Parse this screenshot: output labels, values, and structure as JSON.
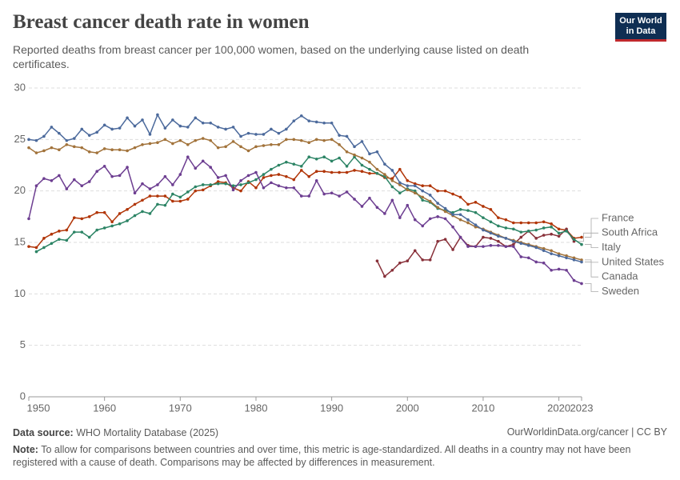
{
  "chart_data": {
    "type": "line",
    "title": "Breast cancer death rate in women",
    "subtitle": "Reported deaths from breast cancer per 100,000 women, based on the underlying cause listed on death certificates.",
    "logo": [
      "Our World",
      "in Data"
    ],
    "source_label": "Data source:",
    "source": "WHO Mortality Database (2025)",
    "credit": "OurWorldinData.org/cancer | CC BY",
    "note_label": "Note:",
    "note": "To allow for comparisons between countries and over time, this metric is age-standardized. All deaths in a country may not have been registered with a cause of death. Comparisons may be affected by differences in measurement.",
    "grid": true,
    "xlim": [
      1950,
      2023
    ],
    "xticks": [
      1950,
      1960,
      1970,
      1980,
      1990,
      2000,
      2010,
      2020,
      2023
    ],
    "ylim": [
      0,
      30
    ],
    "yticks": [
      0,
      5,
      10,
      15,
      20,
      25,
      30
    ],
    "x": [
      1950,
      1951,
      1952,
      1953,
      1954,
      1955,
      1956,
      1957,
      1958,
      1959,
      1960,
      1961,
      1962,
      1963,
      1964,
      1965,
      1966,
      1967,
      1968,
      1969,
      1970,
      1971,
      1972,
      1973,
      1974,
      1975,
      1976,
      1977,
      1978,
      1979,
      1980,
      1981,
      1982,
      1983,
      1984,
      1985,
      1986,
      1987,
      1988,
      1989,
      1990,
      1991,
      1992,
      1993,
      1994,
      1995,
      1996,
      1997,
      1998,
      1999,
      2000,
      2001,
      2002,
      2003,
      2004,
      2005,
      2006,
      2007,
      2008,
      2009,
      2010,
      2011,
      2012,
      2013,
      2014,
      2015,
      2016,
      2017,
      2018,
      2019,
      2020,
      2021,
      2022,
      2023
    ],
    "series": [
      {
        "name": "France",
        "color": "#B13507",
        "values": [
          14.6,
          14.5,
          15.4,
          15.8,
          16.1,
          16.2,
          17.4,
          17.3,
          17.5,
          17.9,
          17.9,
          17.0,
          17.8,
          18.2,
          18.7,
          19.1,
          19.5,
          19.5,
          19.5,
          19.0,
          19.0,
          19.2,
          20.0,
          20.1,
          20.5,
          20.9,
          20.8,
          20.3,
          20.0,
          20.9,
          20.3,
          21.3,
          21.5,
          21.6,
          21.4,
          21.1,
          22.0,
          21.4,
          21.9,
          21.9,
          21.8,
          21.8,
          21.8,
          22.0,
          21.9,
          21.7,
          21.7,
          21.3,
          21.2,
          22.1,
          21.0,
          20.7,
          20.5,
          20.5,
          20.0,
          20.0,
          19.7,
          19.4,
          18.7,
          18.9,
          18.5,
          18.2,
          17.4,
          17.2,
          16.9,
          16.9,
          16.9,
          16.9,
          17.0,
          16.8,
          16.3,
          16.2,
          15.4,
          15.5
        ]
      },
      {
        "name": "South Africa",
        "color": "#883039",
        "values": [
          null,
          null,
          null,
          null,
          null,
          null,
          null,
          null,
          null,
          null,
          null,
          null,
          null,
          null,
          null,
          null,
          null,
          null,
          null,
          null,
          null,
          null,
          null,
          null,
          null,
          null,
          null,
          null,
          null,
          null,
          null,
          null,
          null,
          null,
          null,
          null,
          null,
          null,
          null,
          null,
          null,
          null,
          null,
          null,
          null,
          null,
          13.2,
          11.7,
          12.3,
          13.0,
          13.2,
          14.2,
          13.3,
          13.3,
          15.1,
          15.3,
          14.3,
          15.5,
          14.7,
          14.6,
          15.5,
          15.4,
          15.1,
          14.6,
          14.8,
          15.5,
          16.1,
          15.4,
          15.7,
          15.8,
          15.6,
          16.3,
          15.1,
          null
        ]
      },
      {
        "name": "Italy",
        "color": "#2C8465",
        "values": [
          null,
          14.1,
          14.5,
          14.9,
          15.3,
          15.2,
          16.0,
          16.0,
          15.5,
          16.2,
          16.4,
          16.6,
          16.8,
          17.1,
          17.6,
          18.0,
          17.8,
          18.7,
          18.6,
          19.7,
          19.4,
          19.9,
          20.4,
          20.6,
          20.6,
          20.7,
          20.7,
          20.5,
          20.6,
          20.8,
          21.1,
          21.6,
          22.1,
          22.5,
          22.8,
          22.6,
          22.4,
          23.3,
          23.1,
          23.3,
          22.9,
          23.2,
          22.4,
          23.3,
          22.5,
          22.1,
          21.7,
          21.4,
          20.4,
          19.8,
          20.2,
          20.0,
          19.1,
          18.9,
          18.3,
          18.1,
          17.9,
          18.2,
          18.1,
          17.9,
          17.4,
          17.0,
          16.6,
          16.4,
          16.3,
          16.0,
          16.1,
          16.2,
          16.4,
          16.5,
          15.9,
          16.1,
          15.3,
          14.8
        ]
      },
      {
        "name": "United States",
        "color": "#A2733B",
        "values": [
          24.2,
          23.7,
          23.9,
          24.2,
          24.0,
          24.5,
          24.3,
          24.2,
          23.8,
          23.7,
          24.1,
          24.0,
          24.0,
          23.9,
          24.2,
          24.5,
          24.6,
          24.7,
          25.0,
          24.6,
          24.9,
          24.5,
          24.9,
          25.1,
          24.9,
          24.2,
          24.3,
          24.8,
          24.3,
          23.9,
          24.3,
          24.4,
          24.5,
          24.5,
          25.0,
          25.0,
          24.9,
          24.7,
          25.0,
          24.9,
          25.0,
          24.5,
          23.8,
          23.5,
          23.2,
          22.8,
          22.1,
          21.6,
          21.0,
          20.6,
          20.1,
          19.8,
          19.4,
          19.0,
          18.4,
          18.0,
          17.6,
          17.2,
          16.9,
          16.5,
          16.3,
          16.0,
          15.7,
          15.4,
          15.2,
          15.0,
          14.8,
          14.6,
          14.4,
          14.2,
          13.9,
          13.7,
          13.5,
          13.3
        ]
      },
      {
        "name": "Canada",
        "color": "#4C6A9C",
        "values": [
          25.0,
          24.9,
          25.3,
          26.2,
          25.6,
          24.9,
          25.1,
          26.0,
          25.4,
          25.7,
          26.4,
          26.0,
          26.1,
          27.1,
          26.3,
          26.9,
          25.5,
          27.4,
          26.1,
          26.9,
          26.3,
          26.2,
          27.1,
          26.6,
          26.6,
          26.2,
          26.0,
          26.2,
          25.3,
          25.6,
          25.5,
          25.5,
          26.0,
          25.6,
          26.0,
          26.8,
          27.3,
          26.8,
          26.7,
          26.6,
          26.6,
          25.4,
          25.3,
          24.3,
          24.8,
          23.6,
          23.8,
          22.6,
          22.0,
          20.8,
          20.5,
          20.5,
          20.0,
          19.6,
          18.8,
          18.3,
          17.7,
          17.7,
          17.2,
          16.7,
          16.2,
          15.9,
          15.6,
          15.4,
          15.1,
          14.9,
          14.7,
          14.5,
          14.2,
          13.9,
          13.7,
          13.5,
          13.3,
          13.1
        ]
      },
      {
        "name": "Sweden",
        "color": "#6D3E91",
        "values": [
          17.3,
          20.5,
          21.2,
          21.0,
          21.5,
          20.2,
          21.1,
          20.5,
          20.9,
          21.9,
          22.4,
          21.4,
          21.5,
          22.3,
          19.8,
          20.7,
          20.2,
          20.6,
          21.4,
          20.6,
          21.6,
          23.3,
          22.2,
          22.9,
          22.3,
          21.3,
          21.5,
          20.1,
          21.0,
          21.5,
          21.8,
          20.3,
          20.8,
          20.5,
          20.3,
          20.3,
          19.5,
          19.5,
          21.0,
          19.7,
          19.8,
          19.5,
          19.9,
          19.2,
          18.5,
          19.3,
          18.4,
          17.8,
          19.1,
          17.4,
          18.6,
          17.2,
          16.6,
          17.3,
          17.5,
          17.3,
          16.5,
          15.5,
          14.6,
          14.6,
          14.6,
          14.7,
          14.7,
          14.6,
          14.6,
          13.6,
          13.5,
          13.1,
          13.0,
          12.3,
          12.4,
          12.3,
          11.3,
          11.0
        ]
      }
    ]
  }
}
